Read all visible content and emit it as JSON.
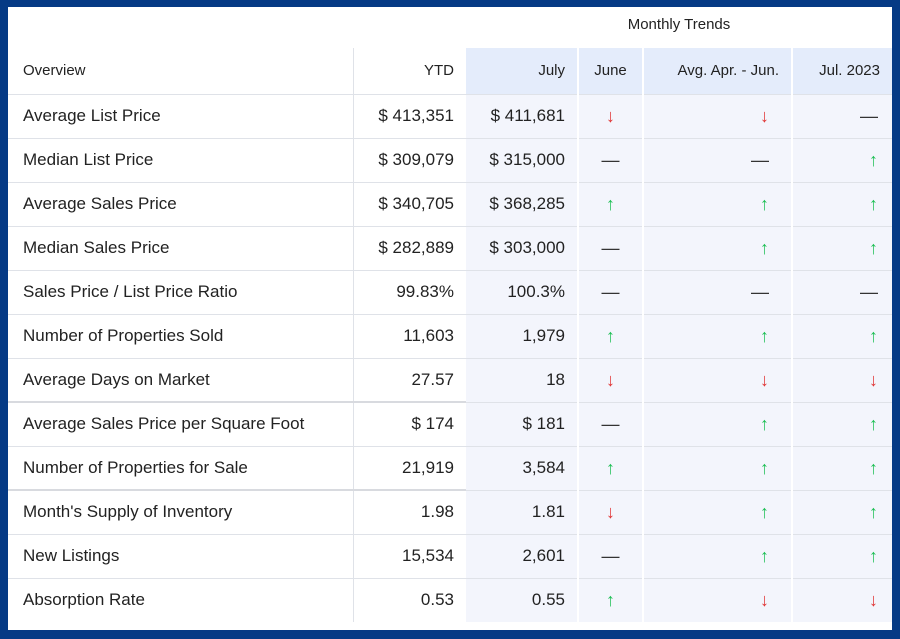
{
  "header": {
    "group_title": "Monthly Trends",
    "columns": [
      "Overview",
      "YTD",
      "July",
      "June",
      "Avg. Apr. - Jun.",
      "Jul. 2023"
    ]
  },
  "colors": {
    "up": "#1fbf56",
    "down": "#e03434",
    "flat": "#333333",
    "frame": "#053a85",
    "highlight": "#f3f5fc"
  },
  "icons": {
    "up": "↑",
    "down": "↓",
    "flat": "—"
  },
  "rows": [
    {
      "label": "Average List Price",
      "ytd": "$ 413,351",
      "july": "$ 411,681",
      "june": "down",
      "avg": "down",
      "yoy": "flat"
    },
    {
      "label": "Median List Price",
      "ytd": "$ 309,079",
      "july": "$ 315,000",
      "june": "flat",
      "avg": "flat",
      "yoy": "up"
    },
    {
      "label": "Average Sales Price",
      "ytd": "$ 340,705",
      "july": "$ 368,285",
      "june": "up",
      "avg": "up",
      "yoy": "up"
    },
    {
      "label": "Median Sales Price",
      "ytd": "$ 282,889",
      "july": "$ 303,000",
      "june": "flat",
      "avg": "up",
      "yoy": "up"
    },
    {
      "label": "Sales Price / List Price Ratio",
      "ytd": "99.83%",
      "july": "100.3%",
      "june": "flat",
      "avg": "flat",
      "yoy": "flat"
    },
    {
      "label": "Number of Properties Sold",
      "ytd": "11,603",
      "july": "1,979",
      "june": "up",
      "avg": "up",
      "yoy": "up"
    },
    {
      "label": "Average Days on Market",
      "ytd": "27.57",
      "july": "18",
      "june": "down",
      "avg": "down",
      "yoy": "down"
    },
    {
      "label": "Average Sales Price per Square Foot",
      "ytd": "$ 174",
      "july": "$ 181",
      "june": "flat",
      "avg": "up",
      "yoy": "up"
    },
    {
      "label": "Number of Properties for Sale",
      "ytd": "21,919",
      "july": "3,584",
      "june": "up",
      "avg": "up",
      "yoy": "up"
    },
    {
      "label": "Month's Supply of Inventory",
      "ytd": "1.98",
      "july": "1.81",
      "june": "down",
      "avg": "up",
      "yoy": "up"
    },
    {
      "label": "New Listings",
      "ytd": "15,534",
      "july": "2,601",
      "june": "flat",
      "avg": "up",
      "yoy": "up"
    },
    {
      "label": "Absorption Rate",
      "ytd": "0.53",
      "july": "0.55",
      "june": "up",
      "avg": "down",
      "yoy": "down"
    }
  ]
}
